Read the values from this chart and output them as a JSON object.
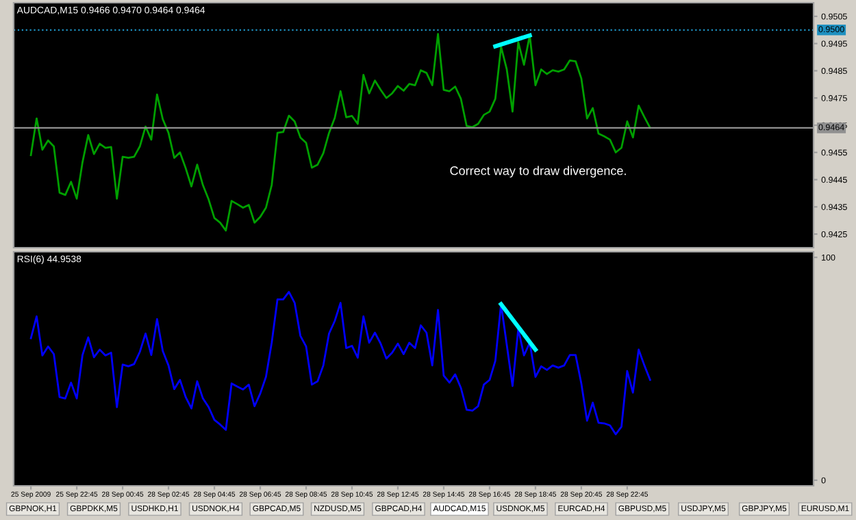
{
  "chart_data": [
    {
      "type": "line",
      "title": "AUDCAD,M15 0.9466 0.9470 0.9464 0.9464",
      "annotations": [
        "Correct way to draw divergence."
      ],
      "categories": [
        null,
        null,
        null,
        null,
        null,
        null,
        null,
        null,
        null,
        null,
        null,
        null,
        null,
        null,
        null,
        null,
        null,
        null,
        null,
        null,
        null,
        null,
        null,
        null,
        null,
        null,
        null,
        null,
        null,
        null,
        null,
        null,
        null,
        null,
        null,
        null,
        null,
        null,
        null,
        null,
        null,
        null,
        null,
        null,
        null,
        null,
        null,
        null,
        null,
        null,
        null,
        null,
        null,
        null,
        null,
        null,
        null,
        null,
        null,
        null,
        null,
        null,
        null,
        null,
        null,
        null,
        null,
        null,
        null,
        null,
        null,
        null,
        null,
        null,
        null,
        null,
        null,
        null,
        null,
        null,
        null,
        null,
        null,
        null,
        null,
        null,
        null,
        null,
        null,
        null,
        null,
        null,
        null,
        null,
        null,
        null,
        null,
        null,
        null,
        null,
        null,
        null,
        null,
        null,
        null,
        null,
        null,
        null,
        null,
        null,
        null,
        null,
        null,
        null,
        null,
        null,
        null,
        null,
        null,
        null,
        null,
        null,
        null,
        null,
        null,
        null,
        null,
        null,
        null,
        null,
        null,
        null,
        null,
        null,
        null,
        null,
        null
      ],
      "series": [
        {
          "color": "#00a000",
          "values": [
            0.9454,
            0.94675,
            0.9456,
            0.94594,
            0.94572,
            0.94402,
            0.94394,
            0.94442,
            0.9438,
            0.94514,
            0.94614,
            0.94544,
            0.94582,
            0.94567,
            0.9457,
            0.9438,
            0.94534,
            0.9453,
            0.94534,
            0.94572,
            0.94645,
            0.94597,
            0.94763,
            0.94672,
            0.94622,
            0.9453,
            0.9455,
            0.94492,
            0.94425,
            0.94505,
            0.9443,
            0.94377,
            0.94309,
            0.94292,
            0.94263,
            0.94372,
            0.9436,
            0.94347,
            0.94357,
            0.94292,
            0.94313,
            0.94347,
            0.9443,
            0.94622,
            0.94625,
            0.94685,
            0.94664,
            0.94605,
            0.94585,
            0.94494,
            0.94505,
            0.94547,
            0.94622,
            0.94677,
            0.94775,
            0.94679,
            0.94684,
            0.94655,
            0.94835,
            0.94767,
            0.94814,
            0.9478,
            0.9475,
            0.94767,
            0.94794,
            0.94777,
            0.94802,
            0.94797,
            0.94852,
            0.94842,
            0.94797,
            0.94985,
            0.9478,
            0.94775,
            0.94792,
            0.94747,
            0.94647,
            0.94643,
            0.94655,
            0.94688,
            0.947,
            0.94747,
            0.94938,
            0.94855,
            0.947,
            0.94955,
            0.94872,
            0.9498,
            0.94797,
            0.94855,
            0.94838,
            0.94852,
            0.94847,
            0.94855,
            0.94888,
            0.94885,
            0.94822,
            0.94675,
            0.94713,
            0.94619,
            0.94609,
            0.94597,
            0.9455,
            0.94567,
            0.94664,
            0.94605,
            0.94722,
            0.9468,
            0.9464,
            null,
            null,
            null,
            null,
            null,
            null,
            null,
            null,
            null,
            null,
            null,
            null,
            null,
            null,
            null,
            null,
            null,
            null,
            null,
            null,
            null,
            null,
            null,
            null,
            null,
            null,
            null,
            null
          ]
        },
        {
          "color": "#00ffff",
          "values": [
            null,
            null,
            null,
            null,
            null,
            null,
            null,
            null,
            null,
            null,
            null,
            null,
            null,
            null,
            null,
            null,
            null,
            null,
            null,
            null,
            null,
            null,
            null,
            null,
            null,
            null,
            null,
            null,
            null,
            null,
            null,
            null,
            null,
            null,
            null,
            null,
            null,
            null,
            null,
            null,
            null,
            null,
            null,
            null,
            null,
            null,
            null,
            null,
            null,
            null,
            null,
            null,
            null,
            null,
            null,
            null,
            null,
            null,
            null,
            null,
            null,
            null,
            null,
            null,
            null,
            null,
            null,
            null,
            null,
            null,
            null,
            null,
            null,
            null,
            null,
            null,
            null,
            null,
            null,
            null,
            null,
            0.9494,
            null,
            null,
            null,
            null,
            null,
            0.9498,
            null,
            null,
            null,
            null,
            null,
            null,
            null,
            null,
            null,
            null,
            null,
            null,
            null,
            null,
            null,
            null,
            null,
            null,
            null,
            null,
            null,
            null,
            null,
            null,
            null,
            null,
            null,
            null,
            null,
            null,
            null,
            null,
            null,
            null,
            null,
            null,
            null,
            null,
            null,
            null,
            null,
            null,
            null,
            null,
            null,
            null,
            null,
            null,
            null
          ]
        }
      ],
      "ref_lines": [
        {
          "axis": "y",
          "value": 0.95,
          "label": "0.9500",
          "color": "#1e90c0",
          "line_style": "dotted"
        },
        {
          "axis": "y",
          "value": 0.9464,
          "label": "0.9464",
          "color": "#909090",
          "line_style": "solid"
        }
      ],
      "ylim": [
        0.942,
        0.951
      ],
      "yticks": [
        0.9425,
        0.9435,
        0.9445,
        0.9455,
        0.9465,
        0.9475,
        0.9485,
        0.9495,
        0.9505
      ],
      "tick_labels": "y"
    },
    {
      "type": "line",
      "title": "RSI(6) 44.9538",
      "annotations": [
        "GBPNOK,H1",
        "GBPDKK,M5",
        "USDHKD,H1",
        "USDNOK,H4",
        "GBPCAD,M5",
        "NZDUSD,M5",
        "GBPCAD,H4",
        "AUDCAD,M15",
        "USDNOK,M5",
        "EURCAD,H4",
        "GBPUSD,M5",
        "USDJPY,M5",
        "GBPJPY,M5",
        "EURUSD,M1"
      ],
      "categories": [
        "25 Sep 2009",
        null,
        null,
        null,
        null,
        null,
        null,
        null,
        "25 Sep 22:45",
        null,
        null,
        null,
        null,
        null,
        null,
        null,
        "28 Sep 00:45",
        null,
        null,
        null,
        null,
        null,
        null,
        null,
        "28 Sep 02:45",
        null,
        null,
        null,
        null,
        null,
        null,
        null,
        "28 Sep 04:45",
        null,
        null,
        null,
        null,
        null,
        null,
        null,
        "28 Sep 06:45",
        null,
        null,
        null,
        null,
        null,
        null,
        null,
        "28 Sep 08:45",
        null,
        null,
        null,
        null,
        null,
        null,
        null,
        "28 Sep 10:45",
        null,
        null,
        null,
        null,
        null,
        null,
        null,
        "28 Sep 12:45",
        null,
        null,
        null,
        null,
        null,
        null,
        null,
        "28 Sep 14:45",
        null,
        null,
        null,
        null,
        null,
        null,
        null,
        "28 Sep 16:45",
        null,
        null,
        null,
        null,
        null,
        null,
        null,
        "28 Sep 18:45",
        null,
        null,
        null,
        null,
        null,
        null,
        null,
        "28 Sep 20:45",
        null,
        null,
        null,
        null,
        null,
        null,
        null,
        "28 Sep 22:45",
        null,
        null,
        null,
        null,
        null,
        null,
        null,
        null,
        null,
        null,
        null,
        null,
        null,
        null,
        null,
        null,
        null,
        null,
        null,
        null,
        null,
        null,
        null,
        null,
        null,
        null,
        null,
        null,
        null,
        null,
        null,
        null
      ],
      "series": [
        {
          "color": "#0000ff",
          "values": [
            63.7,
            73.5,
            56,
            60,
            56.6,
            37.3,
            36.7,
            43.8,
            36.7,
            56.2,
            64.1,
            55.2,
            58.6,
            56,
            57.2,
            32.8,
            51.9,
            51.1,
            52.1,
            57.6,
            65.8,
            56.2,
            72.3,
            58,
            51.5,
            40.9,
            45,
            37.3,
            32.2,
            44.4,
            36.7,
            32.8,
            27.1,
            25,
            22.6,
            43.4,
            42,
            40.7,
            42.9,
            33.2,
            38.9,
            46.4,
            61.7,
            81.1,
            81.1,
            84.5,
            79.6,
            64.8,
            60,
            42.9,
            44.4,
            51.5,
            65.8,
            71.5,
            79.6,
            59.3,
            60.3,
            55,
            73.5,
            61.7,
            66.2,
            61.3,
            54.6,
            57.2,
            61.3,
            56.6,
            61.7,
            59.3,
            69.5,
            66.2,
            51.5,
            76.4,
            47,
            43.8,
            47.5,
            41.4,
            31.6,
            31.2,
            33.2,
            42.9,
            45,
            53.6,
            79,
            60.7,
            42.3,
            67.8,
            56,
            61.7,
            46.4,
            51.1,
            49.5,
            51.5,
            50.5,
            51.5,
            56.2,
            56.2,
            43.4,
            26.7,
            34.8,
            25.8,
            25.5,
            24.6,
            20.6,
            24,
            49,
            39.3,
            58.6,
            51.5,
            45,
            null,
            null,
            null,
            null,
            null,
            null,
            null,
            null,
            null,
            null,
            null,
            null,
            null,
            null,
            null,
            null,
            null,
            null,
            null,
            null,
            null,
            null,
            null,
            null,
            null,
            null,
            null,
            null
          ]
        },
        {
          "color": "#00ffff",
          "values": [
            null,
            null,
            null,
            null,
            null,
            null,
            null,
            null,
            null,
            null,
            null,
            null,
            null,
            null,
            null,
            null,
            null,
            null,
            null,
            null,
            null,
            null,
            null,
            null,
            null,
            null,
            null,
            null,
            null,
            null,
            null,
            null,
            null,
            null,
            null,
            null,
            null,
            null,
            null,
            null,
            null,
            null,
            null,
            null,
            null,
            null,
            null,
            null,
            null,
            null,
            null,
            null,
            null,
            null,
            null,
            null,
            null,
            null,
            null,
            null,
            null,
            null,
            null,
            null,
            null,
            null,
            null,
            null,
            null,
            null,
            null,
            null,
            null,
            null,
            null,
            null,
            null,
            null,
            null,
            null,
            null,
            null,
            79,
            null,
            null,
            null,
            null,
            null,
            58.6,
            null,
            null,
            null,
            null,
            null,
            null,
            null,
            null,
            null,
            null,
            null,
            null,
            null,
            null,
            null,
            null,
            null,
            null,
            null,
            null,
            null,
            null,
            null,
            null,
            null,
            null,
            null,
            null,
            null,
            null,
            null,
            null,
            null,
            null,
            null,
            null,
            null,
            null,
            null,
            null,
            null,
            null,
            null,
            null,
            null,
            null,
            null,
            null
          ]
        }
      ],
      "ylim": [
        -2.5,
        102.5
      ],
      "yticks": [
        0,
        100
      ]
    }
  ]
}
